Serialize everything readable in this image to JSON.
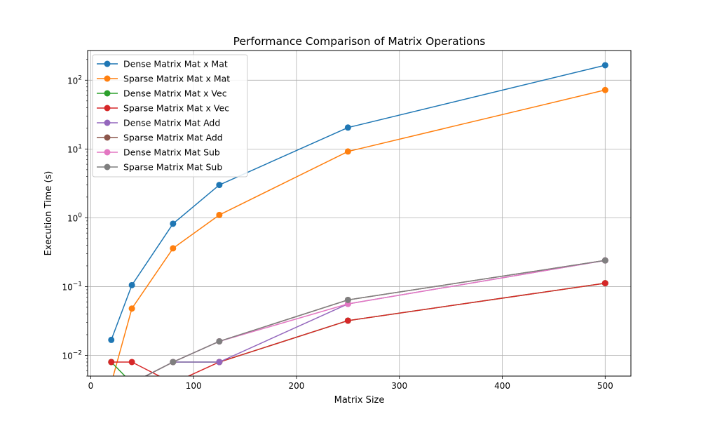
{
  "chart_data": {
    "type": "line",
    "title": "Performance Comparison of Matrix Operations",
    "xlabel": "Matrix Size",
    "ylabel": "Execution Time (s)",
    "yscale": "log",
    "xlim": [
      -3,
      525
    ],
    "ylim": [
      0.005,
      270
    ],
    "grid": true,
    "legend_position": "top-left",
    "x_ticks": [
      {
        "value": 0,
        "label": "0"
      },
      {
        "value": 100,
        "label": "100"
      },
      {
        "value": 200,
        "label": "200"
      },
      {
        "value": 300,
        "label": "300"
      },
      {
        "value": 400,
        "label": "400"
      },
      {
        "value": 500,
        "label": "500"
      }
    ],
    "y_ticks": [
      {
        "value": 0.01,
        "label": "10",
        "exp": "−2"
      },
      {
        "value": 0.1,
        "label": "10",
        "exp": "−1"
      },
      {
        "value": 1,
        "label": "10",
        "exp": "0"
      },
      {
        "value": 10,
        "label": "10",
        "exp": "1"
      },
      {
        "value": 100,
        "label": "10",
        "exp": "2"
      }
    ],
    "x": [
      20,
      40,
      80,
      125,
      250,
      500
    ],
    "series": [
      {
        "name": "Dense Matrix Mat x Mat",
        "color": "#1f77b4",
        "values": [
          0.0168,
          0.105,
          0.82,
          3.0,
          20.5,
          165
        ]
      },
      {
        "name": "Sparse Matrix Mat x Mat",
        "color": "#ff7f0e",
        "values": [
          0,
          0.048,
          0.36,
          1.1,
          9.2,
          72
        ]
      },
      {
        "name": "Dense Matrix Mat x Vec",
        "color": "#2ca02c",
        "values": [
          0.008,
          0,
          0.008,
          0.008,
          0.032,
          0.112
        ]
      },
      {
        "name": "Sparse Matrix Mat x Vec",
        "color": "#d62728",
        "values": [
          0.008,
          0.008,
          0,
          0.008,
          0.032,
          0.112
        ]
      },
      {
        "name": "Dense Matrix Mat Add",
        "color": "#9467bd",
        "values": [
          0,
          0,
          0.008,
          0.008,
          0.056,
          0.24
        ]
      },
      {
        "name": "Sparse Matrix Mat Add",
        "color": "#8c564b",
        "values": [
          0,
          0,
          0.008,
          0.016,
          0.064,
          0.24
        ]
      },
      {
        "name": "Dense Matrix Mat Sub",
        "color": "#e377c2",
        "values": [
          0,
          0,
          0.008,
          0.016,
          0.056,
          0.24
        ]
      },
      {
        "name": "Sparse Matrix Mat Sub",
        "color": "#7f7f7f",
        "values": [
          0,
          0,
          0.008,
          0.016,
          0.064,
          0.24
        ]
      }
    ]
  }
}
